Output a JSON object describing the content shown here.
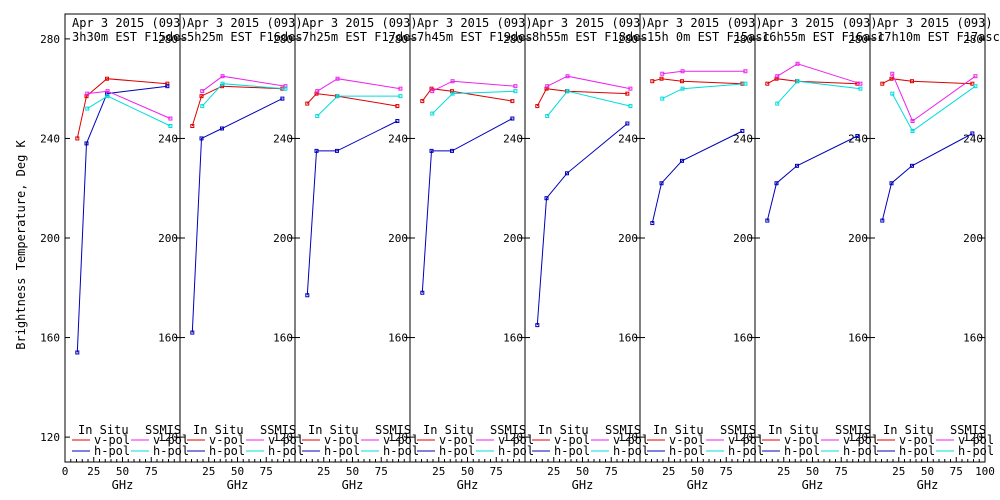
{
  "chart_data": {
    "type": "line",
    "ylabel": "Brightness Temperature, Deg K",
    "xlabel": "GHz",
    "ylim": [
      110,
      290
    ],
    "xlim": [
      0,
      100
    ],
    "yticks": [
      "120",
      "160",
      "200",
      "240",
      "280"
    ],
    "yticks_mirror": [
      "280",
      "240",
      "200",
      "160",
      "120"
    ],
    "xticks": [
      "0",
      "25",
      "50",
      "75",
      "100"
    ],
    "legend": {
      "in_situ": "In Situ",
      "ssmis": "SSMIS",
      "v_pol": "v-pol",
      "h_pol": "h-pol"
    },
    "colors": {
      "insitu_v": "#dd0000",
      "insitu_h": "#0000bb",
      "ssmis_v": "#ee22ee",
      "ssmis_h": "#00dddd"
    },
    "panels": [
      {
        "date": "Apr 3 2015 (093)",
        "time": "3h30m EST F15des",
        "insitu_v": [
          [
            10.7,
            240
          ],
          [
            18.7,
            257
          ],
          [
            36.5,
            264
          ],
          [
            89,
            262
          ]
        ],
        "insitu_h": [
          [
            10.7,
            154
          ],
          [
            18.7,
            238
          ],
          [
            36.5,
            258
          ],
          [
            89,
            261
          ]
        ],
        "ssmis_v": [
          [
            19.35,
            258
          ],
          [
            37,
            259
          ],
          [
            91.655,
            248
          ]
        ],
        "ssmis_h": [
          [
            19.35,
            252
          ],
          [
            37,
            257
          ],
          [
            91.655,
            245
          ]
        ]
      },
      {
        "date": "Apr 3 2015 (093)",
        "time": "5h25m EST F16des",
        "insitu_v": [
          [
            10.7,
            245
          ],
          [
            18.7,
            257
          ],
          [
            36.5,
            261
          ],
          [
            89,
            260
          ]
        ],
        "insitu_h": [
          [
            10.7,
            162
          ],
          [
            18.7,
            240
          ],
          [
            36.5,
            244
          ],
          [
            89,
            256
          ]
        ],
        "ssmis_v": [
          [
            19.35,
            259
          ],
          [
            37,
            265
          ],
          [
            91.655,
            261
          ]
        ],
        "ssmis_h": [
          [
            19.35,
            253
          ],
          [
            37,
            262
          ],
          [
            91.655,
            260
          ]
        ]
      },
      {
        "date": "Apr 3 2015 (093)",
        "time": "7h25m EST F17des",
        "insitu_v": [
          [
            10.7,
            254
          ],
          [
            18.7,
            258
          ],
          [
            36.5,
            257
          ],
          [
            89,
            253
          ]
        ],
        "insitu_h": [
          [
            10.7,
            177
          ],
          [
            18.7,
            235
          ],
          [
            36.5,
            235
          ],
          [
            89,
            247
          ]
        ],
        "ssmis_v": [
          [
            19.35,
            259
          ],
          [
            37,
            264
          ],
          [
            91.655,
            260
          ]
        ],
        "ssmis_h": [
          [
            19.35,
            249
          ],
          [
            37,
            257
          ],
          [
            91.655,
            257
          ]
        ]
      },
      {
        "date": "Apr 3 2015 (093)",
        "time": "7h45m EST F19des",
        "insitu_v": [
          [
            10.7,
            255
          ],
          [
            18.7,
            260
          ],
          [
            36.5,
            259
          ],
          [
            89,
            255
          ]
        ],
        "insitu_h": [
          [
            10.7,
            178
          ],
          [
            18.7,
            235
          ],
          [
            36.5,
            235
          ],
          [
            89,
            248
          ]
        ],
        "ssmis_v": [
          [
            19.35,
            259
          ],
          [
            37,
            263
          ],
          [
            91.655,
            261
          ]
        ],
        "ssmis_h": [
          [
            19.35,
            250
          ],
          [
            37,
            258
          ],
          [
            91.655,
            259
          ]
        ]
      },
      {
        "date": "Apr 3 2015 (093)",
        "time": "8h55m EST F18des",
        "insitu_v": [
          [
            10.7,
            253
          ],
          [
            18.7,
            260
          ],
          [
            36.5,
            259
          ],
          [
            89,
            258
          ]
        ],
        "insitu_h": [
          [
            10.7,
            165
          ],
          [
            18.7,
            216
          ],
          [
            36.5,
            226
          ],
          [
            89,
            246
          ]
        ],
        "ssmis_v": [
          [
            19.35,
            261
          ],
          [
            37,
            265
          ],
          [
            91.655,
            260
          ]
        ],
        "ssmis_h": [
          [
            19.35,
            249
          ],
          [
            37,
            259
          ],
          [
            91.655,
            253
          ]
        ]
      },
      {
        "date": "Apr 3 2015 (093)",
        "time": "15h 0m EST F15asc",
        "insitu_v": [
          [
            10.7,
            263
          ],
          [
            18.7,
            264
          ],
          [
            36.5,
            263
          ],
          [
            89,
            262
          ]
        ],
        "insitu_h": [
          [
            10.7,
            206
          ],
          [
            18.7,
            222
          ],
          [
            36.5,
            231
          ],
          [
            89,
            243
          ]
        ],
        "ssmis_v": [
          [
            19.35,
            266
          ],
          [
            37,
            267
          ],
          [
            91.655,
            267
          ]
        ],
        "ssmis_h": [
          [
            19.35,
            256
          ],
          [
            37,
            260
          ],
          [
            91.655,
            262
          ]
        ]
      },
      {
        "date": "Apr 3 2015 (093)",
        "time": "16h55m EST F16asc",
        "insitu_v": [
          [
            10.7,
            262
          ],
          [
            18.7,
            264
          ],
          [
            36.5,
            263
          ],
          [
            89,
            262
          ]
        ],
        "insitu_h": [
          [
            10.7,
            207
          ],
          [
            18.7,
            222
          ],
          [
            36.5,
            229
          ],
          [
            89,
            241
          ]
        ],
        "ssmis_v": [
          [
            19.35,
            265
          ],
          [
            37,
            270
          ],
          [
            91.655,
            262
          ]
        ],
        "ssmis_h": [
          [
            19.35,
            254
          ],
          [
            37,
            263
          ],
          [
            91.655,
            260
          ]
        ]
      },
      {
        "date": "Apr 3 2015 (093)",
        "time": "17h10m EST F17asc",
        "insitu_v": [
          [
            10.7,
            262
          ],
          [
            18.7,
            264
          ],
          [
            36.5,
            263
          ],
          [
            89,
            262
          ]
        ],
        "insitu_h": [
          [
            10.7,
            207
          ],
          [
            18.7,
            222
          ],
          [
            36.5,
            229
          ],
          [
            89,
            242
          ]
        ],
        "ssmis_v": [
          [
            19.35,
            266
          ],
          [
            37,
            247
          ],
          [
            91.655,
            265
          ]
        ],
        "ssmis_h": [
          [
            19.35,
            258
          ],
          [
            37,
            243
          ],
          [
            91.655,
            261
          ]
        ]
      }
    ]
  }
}
